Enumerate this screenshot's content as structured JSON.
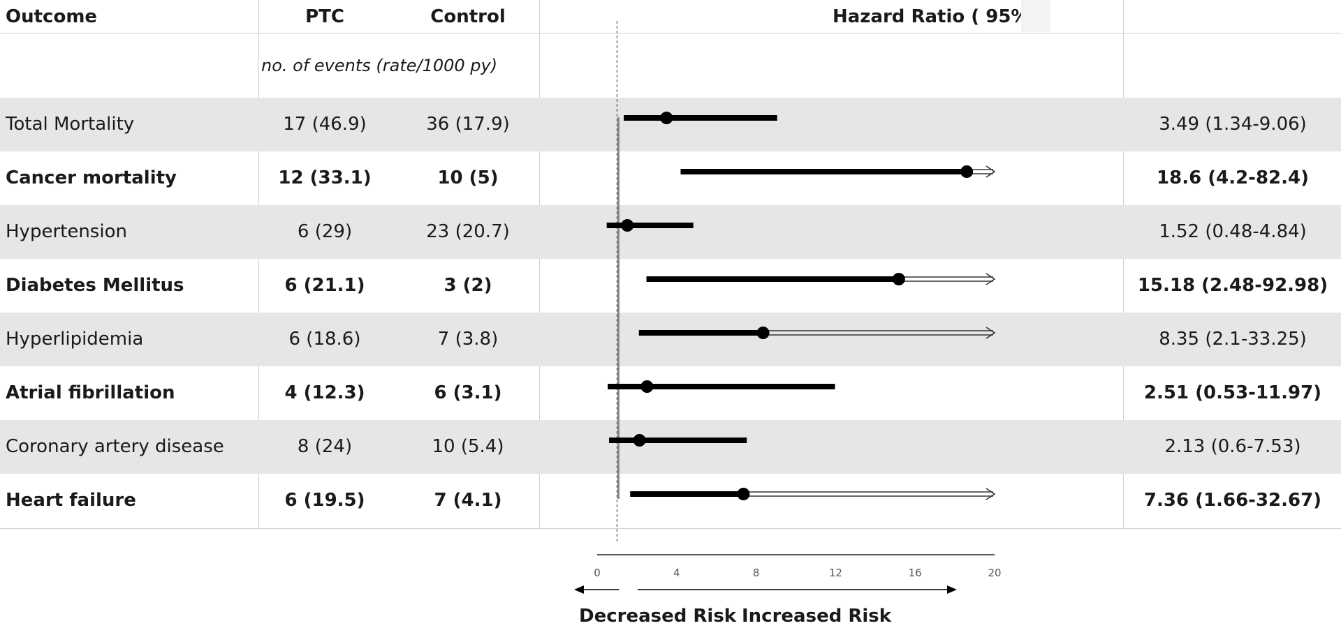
{
  "headers": {
    "outcome": "Outcome",
    "ptc": "PTC",
    "control": "Control",
    "hazard_ratio": "Hazard Ratio ( 95%",
    "subheader": "no. of events (rate/1000 py)"
  },
  "chart_data": {
    "type": "forest",
    "xlim": [
      0,
      20
    ],
    "reference_line": 1,
    "x_ticks": [
      0,
      4,
      8,
      12,
      16,
      20
    ],
    "x_tick_labels": [
      "0",
      "4",
      "8",
      "12",
      "16",
      "20"
    ],
    "direction_labels": {
      "left": "Decreased Risk",
      "right": "Increased Risk"
    },
    "rows": [
      {
        "outcome": "Total Mortality",
        "ptc": "17 (46.9)",
        "control": "36 (17.9)",
        "hr_text": "3.49 (1.34-9.06)",
        "hr": 3.49,
        "lower": 1.34,
        "upper": 9.06,
        "bold": false,
        "truncated": false
      },
      {
        "outcome": "Cancer mortality",
        "ptc": "12 (33.1)",
        "control": "10 (5)",
        "hr_text": "18.6 (4.2-82.4)",
        "hr": 18.6,
        "lower": 4.2,
        "upper": 82.4,
        "bold": true,
        "truncated": true
      },
      {
        "outcome": "Hypertension",
        "ptc": "6 (29)",
        "control": "23 (20.7)",
        "hr_text": "1.52 (0.48-4.84)",
        "hr": 1.52,
        "lower": 0.48,
        "upper": 4.84,
        "bold": false,
        "truncated": false
      },
      {
        "outcome": "Diabetes Mellitus",
        "ptc": "6 (21.1)",
        "control": "3 (2)",
        "hr_text": "15.18 (2.48-92.98)",
        "hr": 15.18,
        "lower": 2.48,
        "upper": 92.98,
        "bold": true,
        "truncated": true
      },
      {
        "outcome": "Hyperlipidemia",
        "ptc": "6 (18.6)",
        "control": "7 (3.8)",
        "hr_text": "8.35 (2.1-33.25)",
        "hr": 8.35,
        "lower": 2.1,
        "upper": 33.25,
        "bold": false,
        "truncated": true
      },
      {
        "outcome": "Atrial fibrillation",
        "ptc": "4 (12.3)",
        "control": "6 (3.1)",
        "hr_text": "2.51 (0.53-11.97)",
        "hr": 2.51,
        "lower": 0.53,
        "upper": 11.97,
        "bold": true,
        "truncated": false
      },
      {
        "outcome": "Coronary artery disease",
        "ptc": "8 (24)",
        "control": "10 (5.4)",
        "hr_text": "2.13 (0.6-7.53)",
        "hr": 2.13,
        "lower": 0.6,
        "upper": 7.53,
        "bold": false,
        "truncated": false
      },
      {
        "outcome": "Heart failure",
        "ptc": "6 (19.5)",
        "control": "7 (4.1)",
        "hr_text": "7.36 (1.66-32.67)",
        "hr": 7.36,
        "lower": 1.66,
        "upper": 32.67,
        "bold": true,
        "truncated": true
      }
    ]
  }
}
